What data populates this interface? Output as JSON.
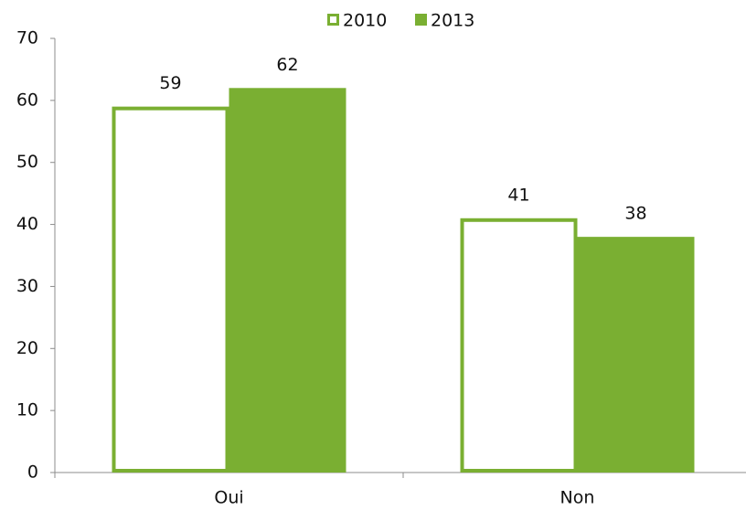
{
  "chart_data": {
    "type": "bar",
    "categories": [
      "Oui",
      "Non"
    ],
    "series": [
      {
        "name": "2010",
        "color": "#7aaf32",
        "filled": false,
        "values": [
          59,
          41
        ]
      },
      {
        "name": "2013",
        "color": "#7aaf32",
        "filled": true,
        "values": [
          62,
          38
        ]
      }
    ],
    "ylim": [
      0,
      70
    ],
    "yticks": [
      0,
      10,
      20,
      30,
      40,
      50,
      60,
      70
    ],
    "grid": false,
    "legend": "top"
  }
}
